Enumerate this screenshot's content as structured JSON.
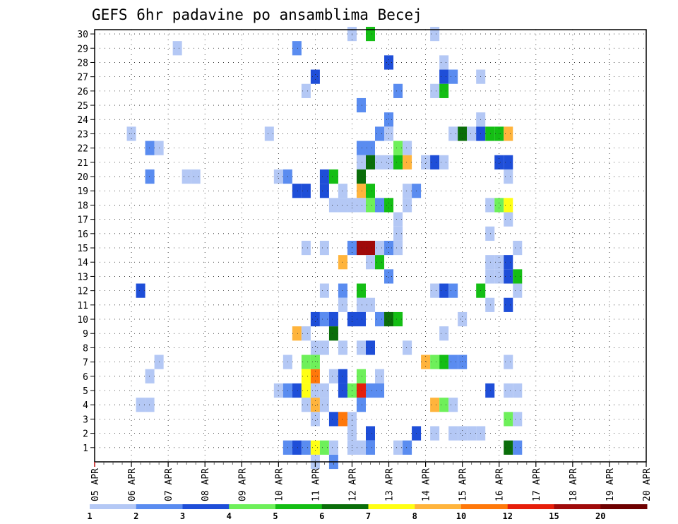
{
  "chart_data": {
    "type": "heatmap",
    "title": "GEFS 6hr padavine po ansamblima Becej",
    "xlabel": "",
    "ylabel": "",
    "x_tick_labels": [
      "05 APR",
      "06 APR",
      "07 APR",
      "08 APR",
      "09 APR",
      "10 APR",
      "11 APR",
      "12 APR",
      "13 APR",
      "14 APR",
      "15 APR",
      "16 APR",
      "17 APR",
      "18 APR",
      "19 APR",
      "20 APR"
    ],
    "x_range_hours": [
      0,
      360
    ],
    "time_step_hours": 6,
    "y_range_members": [
      1,
      30
    ],
    "y_tick_labels": [
      "1",
      "2",
      "3",
      "4",
      "5",
      "6",
      "7",
      "8",
      "9",
      "10",
      "11",
      "12",
      "13",
      "14",
      "15",
      "16",
      "17",
      "18",
      "19",
      "20",
      "21",
      "22",
      "23",
      "24",
      "25",
      "26",
      "27",
      "28",
      "29",
      "30"
    ],
    "grid": true,
    "colorbar": {
      "labels": [
        "1",
        "2",
        "3",
        "4",
        "5",
        "6",
        "7",
        "8",
        "10",
        "12",
        "15",
        "20"
      ],
      "colors": [
        "#b4c8f5",
        "#5a8cf0",
        "#1e4ed8",
        "#6ef05a",
        "#14be14",
        "#0a6e0a",
        "#ffff14",
        "#ffb43c",
        "#ff780a",
        "#e61e0a",
        "#a00a0a",
        "#6e0000"
      ]
    },
    "cells_note": "each cell = [ensemble member, forecast hour, color class index 1-12]",
    "cells": [
      [
        30,
        168,
        1
      ],
      [
        30,
        180,
        5
      ],
      [
        30,
        222,
        1
      ],
      [
        29,
        54,
        1
      ],
      [
        29,
        132,
        2
      ],
      [
        28,
        192,
        3
      ],
      [
        28,
        228,
        1
      ],
      [
        27,
        144,
        3
      ],
      [
        27,
        228,
        3
      ],
      [
        27,
        234,
        2
      ],
      [
        27,
        252,
        1
      ],
      [
        26,
        138,
        1
      ],
      [
        26,
        198,
        2
      ],
      [
        26,
        222,
        1
      ],
      [
        26,
        228,
        5
      ],
      [
        25,
        174,
        2
      ],
      [
        24,
        192,
        2
      ],
      [
        24,
        252,
        1
      ],
      [
        23,
        24,
        1
      ],
      [
        23,
        114,
        1
      ],
      [
        23,
        186,
        2
      ],
      [
        23,
        192,
        1
      ],
      [
        23,
        234,
        1
      ],
      [
        23,
        240,
        6
      ],
      [
        23,
        246,
        1
      ],
      [
        23,
        252,
        3
      ],
      [
        23,
        258,
        5
      ],
      [
        23,
        264,
        5
      ],
      [
        23,
        270,
        8
      ],
      [
        22,
        36,
        2
      ],
      [
        22,
        42,
        1
      ],
      [
        22,
        174,
        2
      ],
      [
        22,
        180,
        2
      ],
      [
        22,
        198,
        4
      ],
      [
        22,
        204,
        1
      ],
      [
        21,
        174,
        1
      ],
      [
        21,
        180,
        6
      ],
      [
        21,
        186,
        1
      ],
      [
        21,
        192,
        1
      ],
      [
        21,
        198,
        5
      ],
      [
        21,
        204,
        8
      ],
      [
        21,
        216,
        1
      ],
      [
        21,
        222,
        3
      ],
      [
        21,
        228,
        1
      ],
      [
        21,
        264,
        3
      ],
      [
        21,
        270,
        3
      ],
      [
        20,
        36,
        2
      ],
      [
        20,
        60,
        1
      ],
      [
        20,
        66,
        1
      ],
      [
        20,
        120,
        1
      ],
      [
        20,
        126,
        2
      ],
      [
        20,
        150,
        3
      ],
      [
        20,
        156,
        5
      ],
      [
        20,
        174,
        6
      ],
      [
        20,
        270,
        1
      ],
      [
        19,
        132,
        3
      ],
      [
        19,
        138,
        3
      ],
      [
        19,
        150,
        3
      ],
      [
        19,
        162,
        1
      ],
      [
        19,
        174,
        8
      ],
      [
        19,
        180,
        5
      ],
      [
        19,
        204,
        1
      ],
      [
        19,
        210,
        2
      ],
      [
        18,
        156,
        1
      ],
      [
        18,
        162,
        1
      ],
      [
        18,
        168,
        1
      ],
      [
        18,
        174,
        1
      ],
      [
        18,
        180,
        4
      ],
      [
        18,
        186,
        2
      ],
      [
        18,
        192,
        5
      ],
      [
        18,
        204,
        1
      ],
      [
        18,
        258,
        1
      ],
      [
        18,
        264,
        4
      ],
      [
        18,
        270,
        7
      ],
      [
        17,
        198,
        1
      ],
      [
        17,
        270,
        1
      ],
      [
        16,
        198,
        1
      ],
      [
        16,
        258,
        1
      ],
      [
        15,
        138,
        1
      ],
      [
        15,
        150,
        1
      ],
      [
        15,
        168,
        2
      ],
      [
        15,
        174,
        11
      ],
      [
        15,
        180,
        11
      ],
      [
        15,
        186,
        1
      ],
      [
        15,
        192,
        2
      ],
      [
        15,
        198,
        1
      ],
      [
        15,
        276,
        1
      ],
      [
        14,
        162,
        8
      ],
      [
        14,
        180,
        1
      ],
      [
        14,
        186,
        5
      ],
      [
        14,
        258,
        1
      ],
      [
        14,
        264,
        1
      ],
      [
        14,
        270,
        3
      ],
      [
        13,
        192,
        2
      ],
      [
        13,
        258,
        1
      ],
      [
        13,
        264,
        1
      ],
      [
        13,
        270,
        3
      ],
      [
        13,
        276,
        5
      ],
      [
        12,
        30,
        3
      ],
      [
        12,
        150,
        1
      ],
      [
        12,
        162,
        2
      ],
      [
        12,
        174,
        5
      ],
      [
        12,
        222,
        1
      ],
      [
        12,
        228,
        3
      ],
      [
        12,
        234,
        2
      ],
      [
        12,
        252,
        5
      ],
      [
        12,
        276,
        1
      ],
      [
        11,
        162,
        1
      ],
      [
        11,
        174,
        1
      ],
      [
        11,
        180,
        1
      ],
      [
        11,
        258,
        1
      ],
      [
        11,
        270,
        3
      ],
      [
        10,
        144,
        3
      ],
      [
        10,
        150,
        2
      ],
      [
        10,
        156,
        3
      ],
      [
        10,
        168,
        3
      ],
      [
        10,
        174,
        3
      ],
      [
        10,
        186,
        2
      ],
      [
        10,
        192,
        6
      ],
      [
        10,
        198,
        5
      ],
      [
        10,
        240,
        1
      ],
      [
        9,
        132,
        8
      ],
      [
        9,
        138,
        1
      ],
      [
        9,
        156,
        6
      ],
      [
        9,
        228,
        1
      ],
      [
        8,
        144,
        1
      ],
      [
        8,
        150,
        1
      ],
      [
        8,
        162,
        1
      ],
      [
        8,
        174,
        1
      ],
      [
        8,
        180,
        3
      ],
      [
        8,
        204,
        1
      ],
      [
        7,
        42,
        1
      ],
      [
        7,
        126,
        1
      ],
      [
        7,
        138,
        4
      ],
      [
        7,
        144,
        4
      ],
      [
        7,
        216,
        8
      ],
      [
        7,
        222,
        4
      ],
      [
        7,
        228,
        5
      ],
      [
        7,
        234,
        2
      ],
      [
        7,
        240,
        2
      ],
      [
        7,
        270,
        1
      ],
      [
        6,
        36,
        1
      ],
      [
        6,
        138,
        7
      ],
      [
        6,
        144,
        9
      ],
      [
        6,
        156,
        1
      ],
      [
        6,
        162,
        3
      ],
      [
        6,
        174,
        4
      ],
      [
        6,
        186,
        1
      ],
      [
        5,
        120,
        1
      ],
      [
        5,
        126,
        2
      ],
      [
        5,
        132,
        3
      ],
      [
        5,
        138,
        7
      ],
      [
        5,
        144,
        1
      ],
      [
        5,
        150,
        1
      ],
      [
        5,
        162,
        3
      ],
      [
        5,
        168,
        4
      ],
      [
        5,
        174,
        10
      ],
      [
        5,
        180,
        2
      ],
      [
        5,
        186,
        2
      ],
      [
        5,
        258,
        3
      ],
      [
        5,
        270,
        1
      ],
      [
        5,
        276,
        1
      ],
      [
        4,
        30,
        1
      ],
      [
        4,
        36,
        1
      ],
      [
        4,
        138,
        1
      ],
      [
        4,
        144,
        8
      ],
      [
        4,
        150,
        1
      ],
      [
        4,
        174,
        2
      ],
      [
        4,
        222,
        8
      ],
      [
        4,
        228,
        4
      ],
      [
        4,
        234,
        1
      ],
      [
        3,
        144,
        1
      ],
      [
        3,
        156,
        3
      ],
      [
        3,
        162,
        9
      ],
      [
        3,
        168,
        1
      ],
      [
        3,
        270,
        4
      ],
      [
        3,
        276,
        1
      ],
      [
        2,
        168,
        1
      ],
      [
        2,
        180,
        3
      ],
      [
        2,
        210,
        3
      ],
      [
        2,
        222,
        1
      ],
      [
        2,
        234,
        1
      ],
      [
        2,
        240,
        1
      ],
      [
        2,
        246,
        1
      ],
      [
        2,
        252,
        1
      ],
      [
        1,
        126,
        2
      ],
      [
        1,
        132,
        3
      ],
      [
        1,
        138,
        2
      ],
      [
        1,
        144,
        7
      ],
      [
        1,
        150,
        4
      ],
      [
        1,
        156,
        1
      ],
      [
        1,
        168,
        1
      ],
      [
        1,
        174,
        1
      ],
      [
        1,
        180,
        2
      ],
      [
        1,
        198,
        1
      ],
      [
        1,
        204,
        2
      ],
      [
        1,
        270,
        6
      ],
      [
        1,
        276,
        2
      ],
      [
        0,
        144,
        1
      ],
      [
        0,
        156,
        2
      ]
    ]
  }
}
